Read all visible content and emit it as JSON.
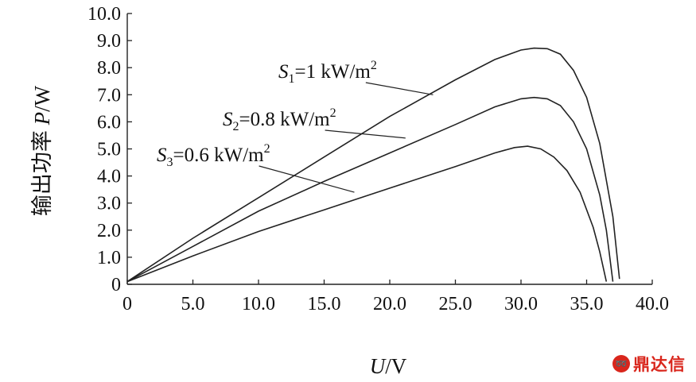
{
  "chart_data": {
    "type": "line",
    "xlabel": "U/V",
    "ylabel": "输出功率 P/W",
    "xlim": [
      0,
      40
    ],
    "ylim": [
      0,
      10
    ],
    "x_ticks": [
      "0",
      "5.0",
      "10.0",
      "15.0",
      "20.0",
      "25.0",
      "30.0",
      "35.0",
      "40.0"
    ],
    "y_ticks": [
      "0",
      "1.0",
      "2.0",
      "3.0",
      "4.0",
      "5.0",
      "6.0",
      "7.0",
      "8.0",
      "9.0",
      "10.0"
    ],
    "series": [
      {
        "name": "S1=1 kW/m2",
        "label": {
          "sym": "S",
          "sub": "1",
          "rest": "=1 kW/m",
          "sup": "2"
        },
        "x": [
          0,
          5,
          10,
          15,
          20,
          25,
          28,
          30,
          31,
          32,
          33,
          34,
          35,
          36,
          37,
          37.5
        ],
        "y": [
          0.1,
          1.7,
          3.2,
          4.7,
          6.2,
          7.55,
          8.3,
          8.65,
          8.72,
          8.7,
          8.5,
          7.9,
          6.9,
          5.2,
          2.5,
          0.2
        ]
      },
      {
        "name": "S2=0.8 kW/m2",
        "label": {
          "sym": "S",
          "sub": "2",
          "rest": "=0.8 kW/m",
          "sup": "2"
        },
        "x": [
          0,
          5,
          10,
          15,
          20,
          25,
          28,
          30,
          31,
          32,
          33,
          34,
          35,
          36,
          36.5,
          37
        ],
        "y": [
          0.1,
          1.4,
          2.7,
          3.8,
          4.85,
          5.9,
          6.55,
          6.85,
          6.9,
          6.85,
          6.6,
          6.0,
          5.0,
          3.3,
          2.0,
          0.1
        ]
      },
      {
        "name": "S3=0.6 kW/m2",
        "label": {
          "sym": "S",
          "sub": "3",
          "rest": "=0.6 kW/m",
          "sup": "2"
        },
        "x": [
          0,
          5,
          10,
          15,
          20,
          25,
          28,
          29.5,
          30.5,
          31.5,
          32.5,
          33.5,
          34.5,
          35.5,
          36,
          36.5
        ],
        "y": [
          0.1,
          1.05,
          1.95,
          2.75,
          3.55,
          4.35,
          4.85,
          5.05,
          5.1,
          5.0,
          4.7,
          4.2,
          3.4,
          2.1,
          1.2,
          0.1
        ]
      }
    ],
    "annotations": [
      {
        "series": 0,
        "from": [
          23.3,
          7.0
        ]
      },
      {
        "series": 1,
        "from": [
          21.2,
          5.4
        ]
      },
      {
        "series": 2,
        "from": [
          17.3,
          3.4
        ]
      }
    ],
    "legend": "inline",
    "grid": false
  },
  "watermark": {
    "text": "鼎达信",
    "mark_color": "#d9261c"
  }
}
